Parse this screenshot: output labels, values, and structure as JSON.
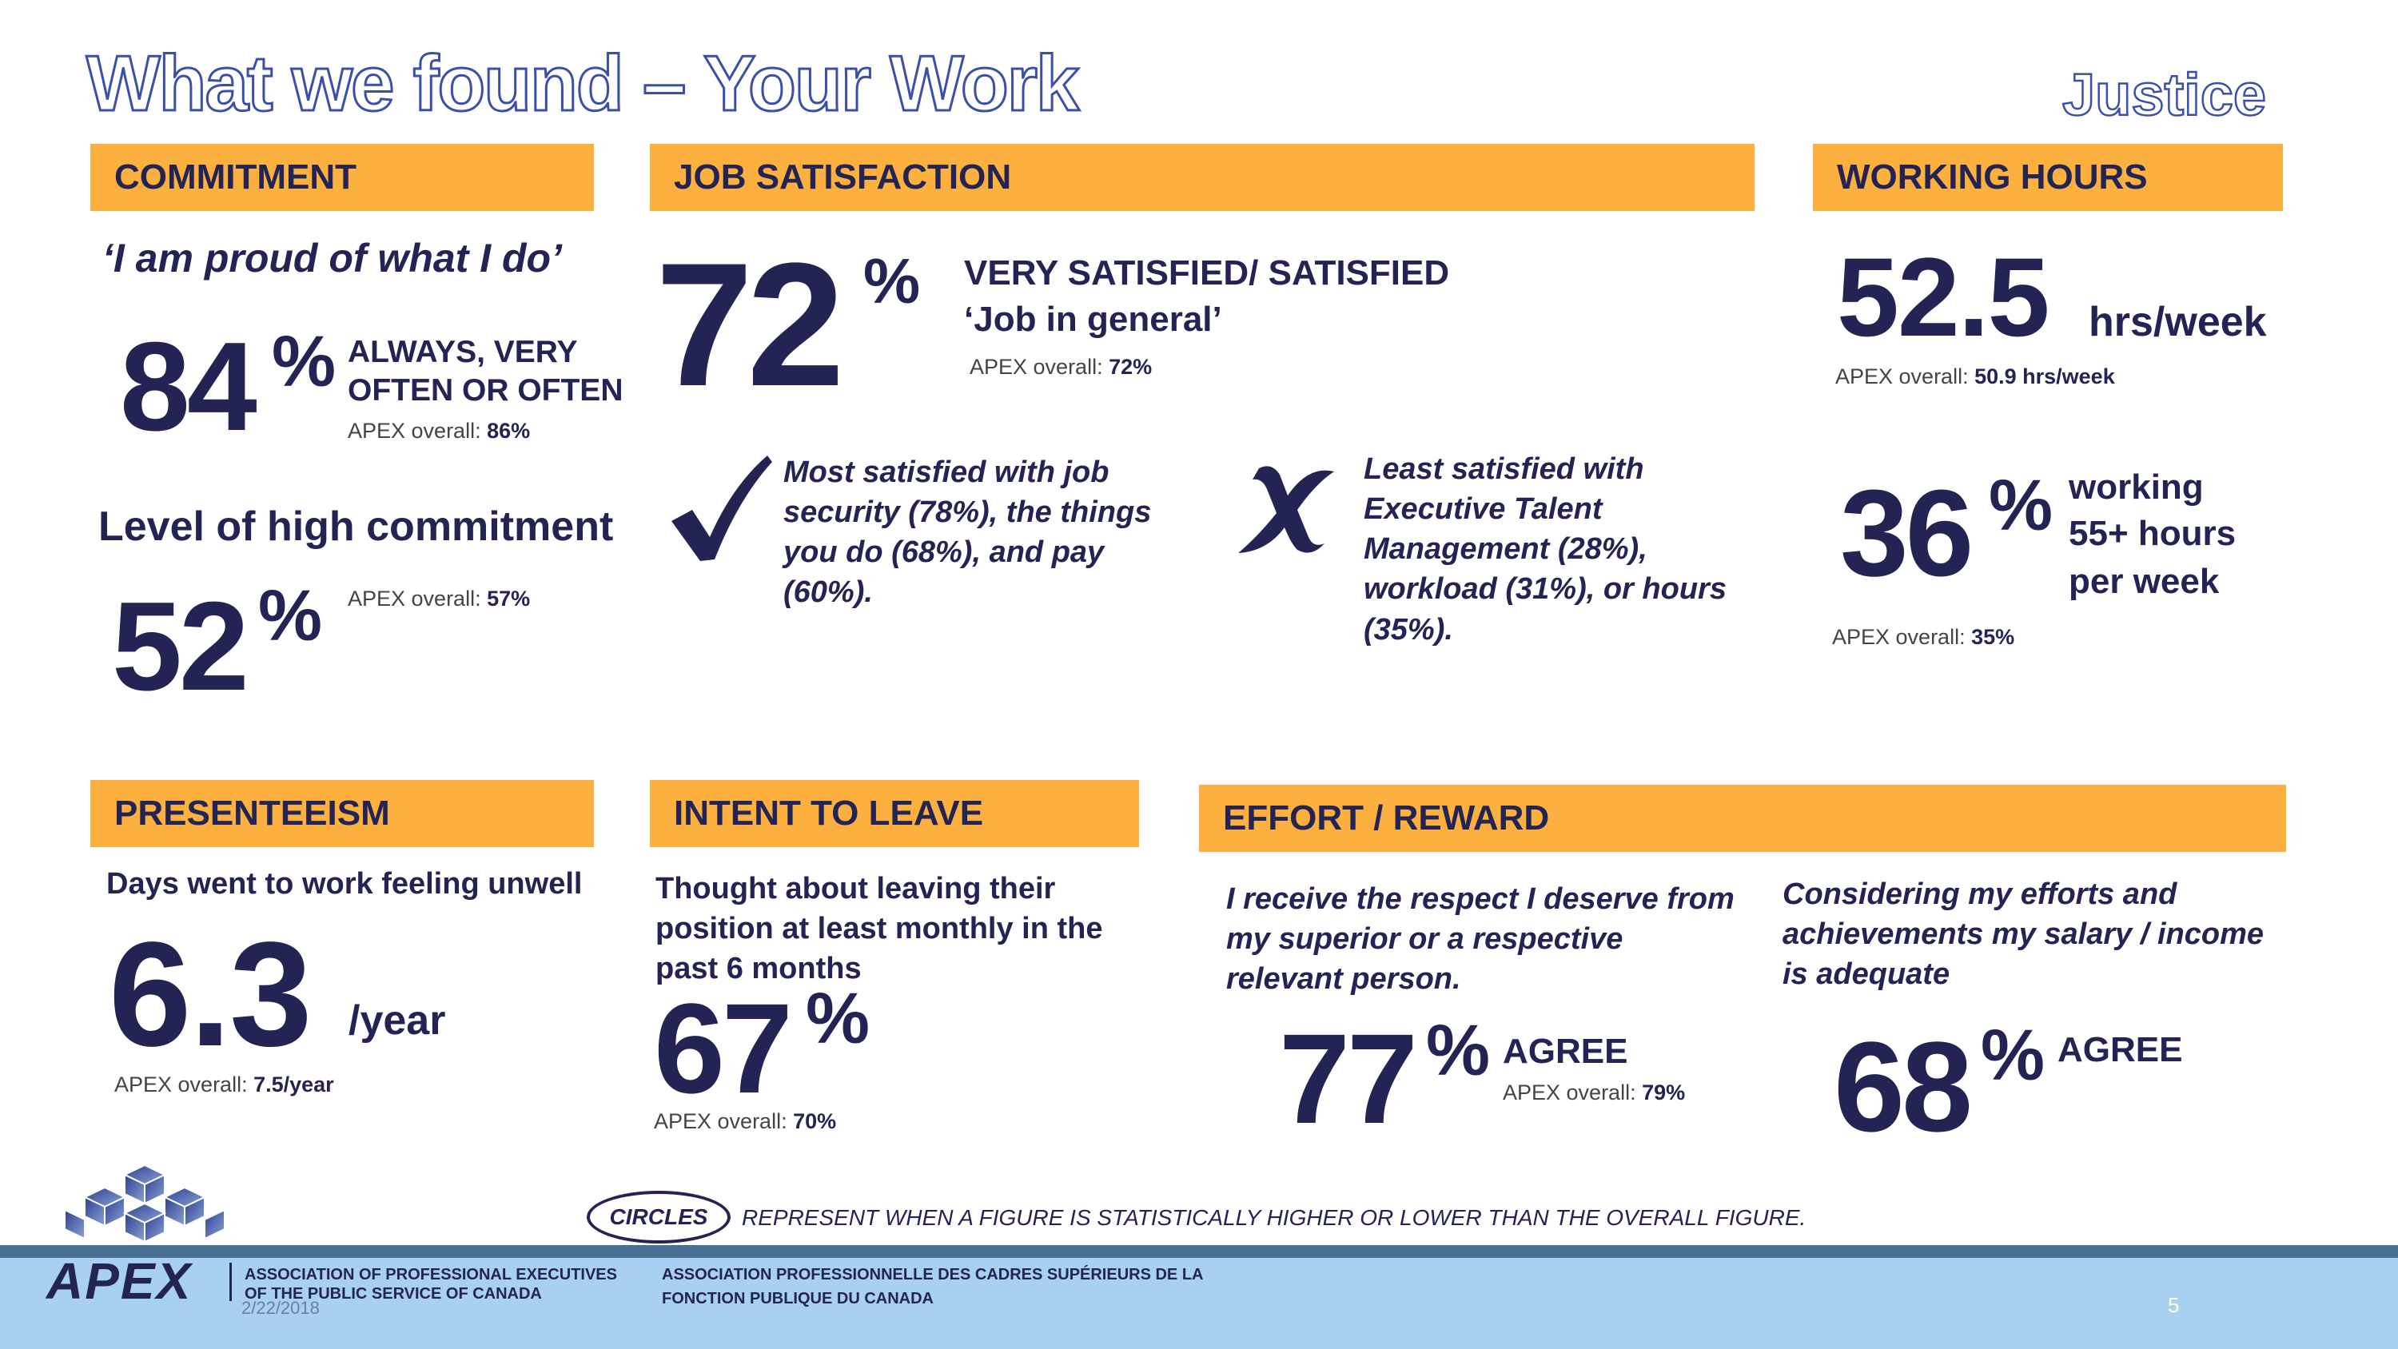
{
  "header": {
    "title": "What we found – Your Work",
    "org": "Justice"
  },
  "sections": {
    "commitment": "COMMITMENT",
    "job_satisfaction": "JOB SATISFACTION",
    "working_hours": "WORKING HOURS",
    "presenteeism": "PRESENTEEISM",
    "intent_to_leave": "INTENT TO LEAVE",
    "effort_reward": "EFFORT / REWARD"
  },
  "commitment": {
    "quote": "‘I am proud of what I do’",
    "value": "84",
    "pct": "%",
    "label_line1": "ALWAYS, VERY",
    "label_line2": "OFTEN OR OFTEN",
    "apex_label": "APEX overall:",
    "apex_value": "86%",
    "high_title": "Level of high commitment",
    "high_value": "52",
    "high_pct": "%",
    "high_apex_label": "APEX overall:",
    "high_apex_value": "57%"
  },
  "job_satisfaction": {
    "value": "72",
    "pct": "%",
    "label_line1": "VERY SATISFIED/ SATISFIED",
    "label_line2": "‘Job in general’",
    "apex_label": "APEX overall:",
    "apex_value": "72%",
    "most_text": "Most satisfied with job security (78%), the things you do (68%), and pay (60%).",
    "least_text": "Least satisfied with Executive Talent Management (28%), workload (31%), or hours (35%).",
    "check_icon": "check-icon",
    "cross_icon": "cross-icon"
  },
  "working_hours": {
    "value": "52.5",
    "unit": "hrs/week",
    "apex_label": "APEX overall:",
    "apex_value": "50.9 hrs/week",
    "pct_value": "36",
    "pct": "%",
    "pct_line1": "working",
    "pct_line2": "55+ hours",
    "pct_line3": "per week",
    "pct_apex_label": "APEX overall:",
    "pct_apex_value": "35%"
  },
  "presenteeism": {
    "desc": "Days went to work feeling unwell",
    "value": "6.3",
    "unit": "/year",
    "apex_label": "APEX overall:",
    "apex_value": "7.5/year"
  },
  "intent_to_leave": {
    "desc_line1": "Thought about leaving their",
    "desc_line2": "position at least monthly in the",
    "desc_line3": "past 6 months",
    "value": "67",
    "pct": "%",
    "apex_label": "APEX overall:",
    "apex_value": "70%"
  },
  "effort_reward": {
    "respect_text": "I receive the respect I deserve from my superior or a respective relevant person.",
    "respect_value": "77",
    "respect_pct": "%",
    "respect_label": "AGREE",
    "respect_apex_label": "APEX overall:",
    "respect_apex_value": "79%",
    "salary_text": "Considering my efforts and achievements my salary / income is adequate",
    "salary_value": "68",
    "salary_pct": "%",
    "salary_label": "AGREE"
  },
  "legend": {
    "circle_label": "CIRCLES",
    "text": "REPRESENT WHEN A FIGURE IS STATISTICALLY HIGHER OR LOWER THAN THE OVERALL FIGURE."
  },
  "footer": {
    "logo_text": "APEX",
    "en_line1": "ASSOCIATION OF PROFESSIONAL EXECUTIVES",
    "en_line2": "OF THE PUBLIC SERVICE OF CANADA",
    "fr_line1": "ASSOCIATION PROFESSIONNELLE DES CADRES SUPÉRIEURS DE LA",
    "fr_line2": "FONCTION PUBLIQUE DU CANADA",
    "date": "2/22/2018",
    "page": "5"
  },
  "colors": {
    "navy": "#232453",
    "orange": "#fbb040",
    "title_outline": "#3a4fa8",
    "footer_bg": "#a8d0f0"
  }
}
